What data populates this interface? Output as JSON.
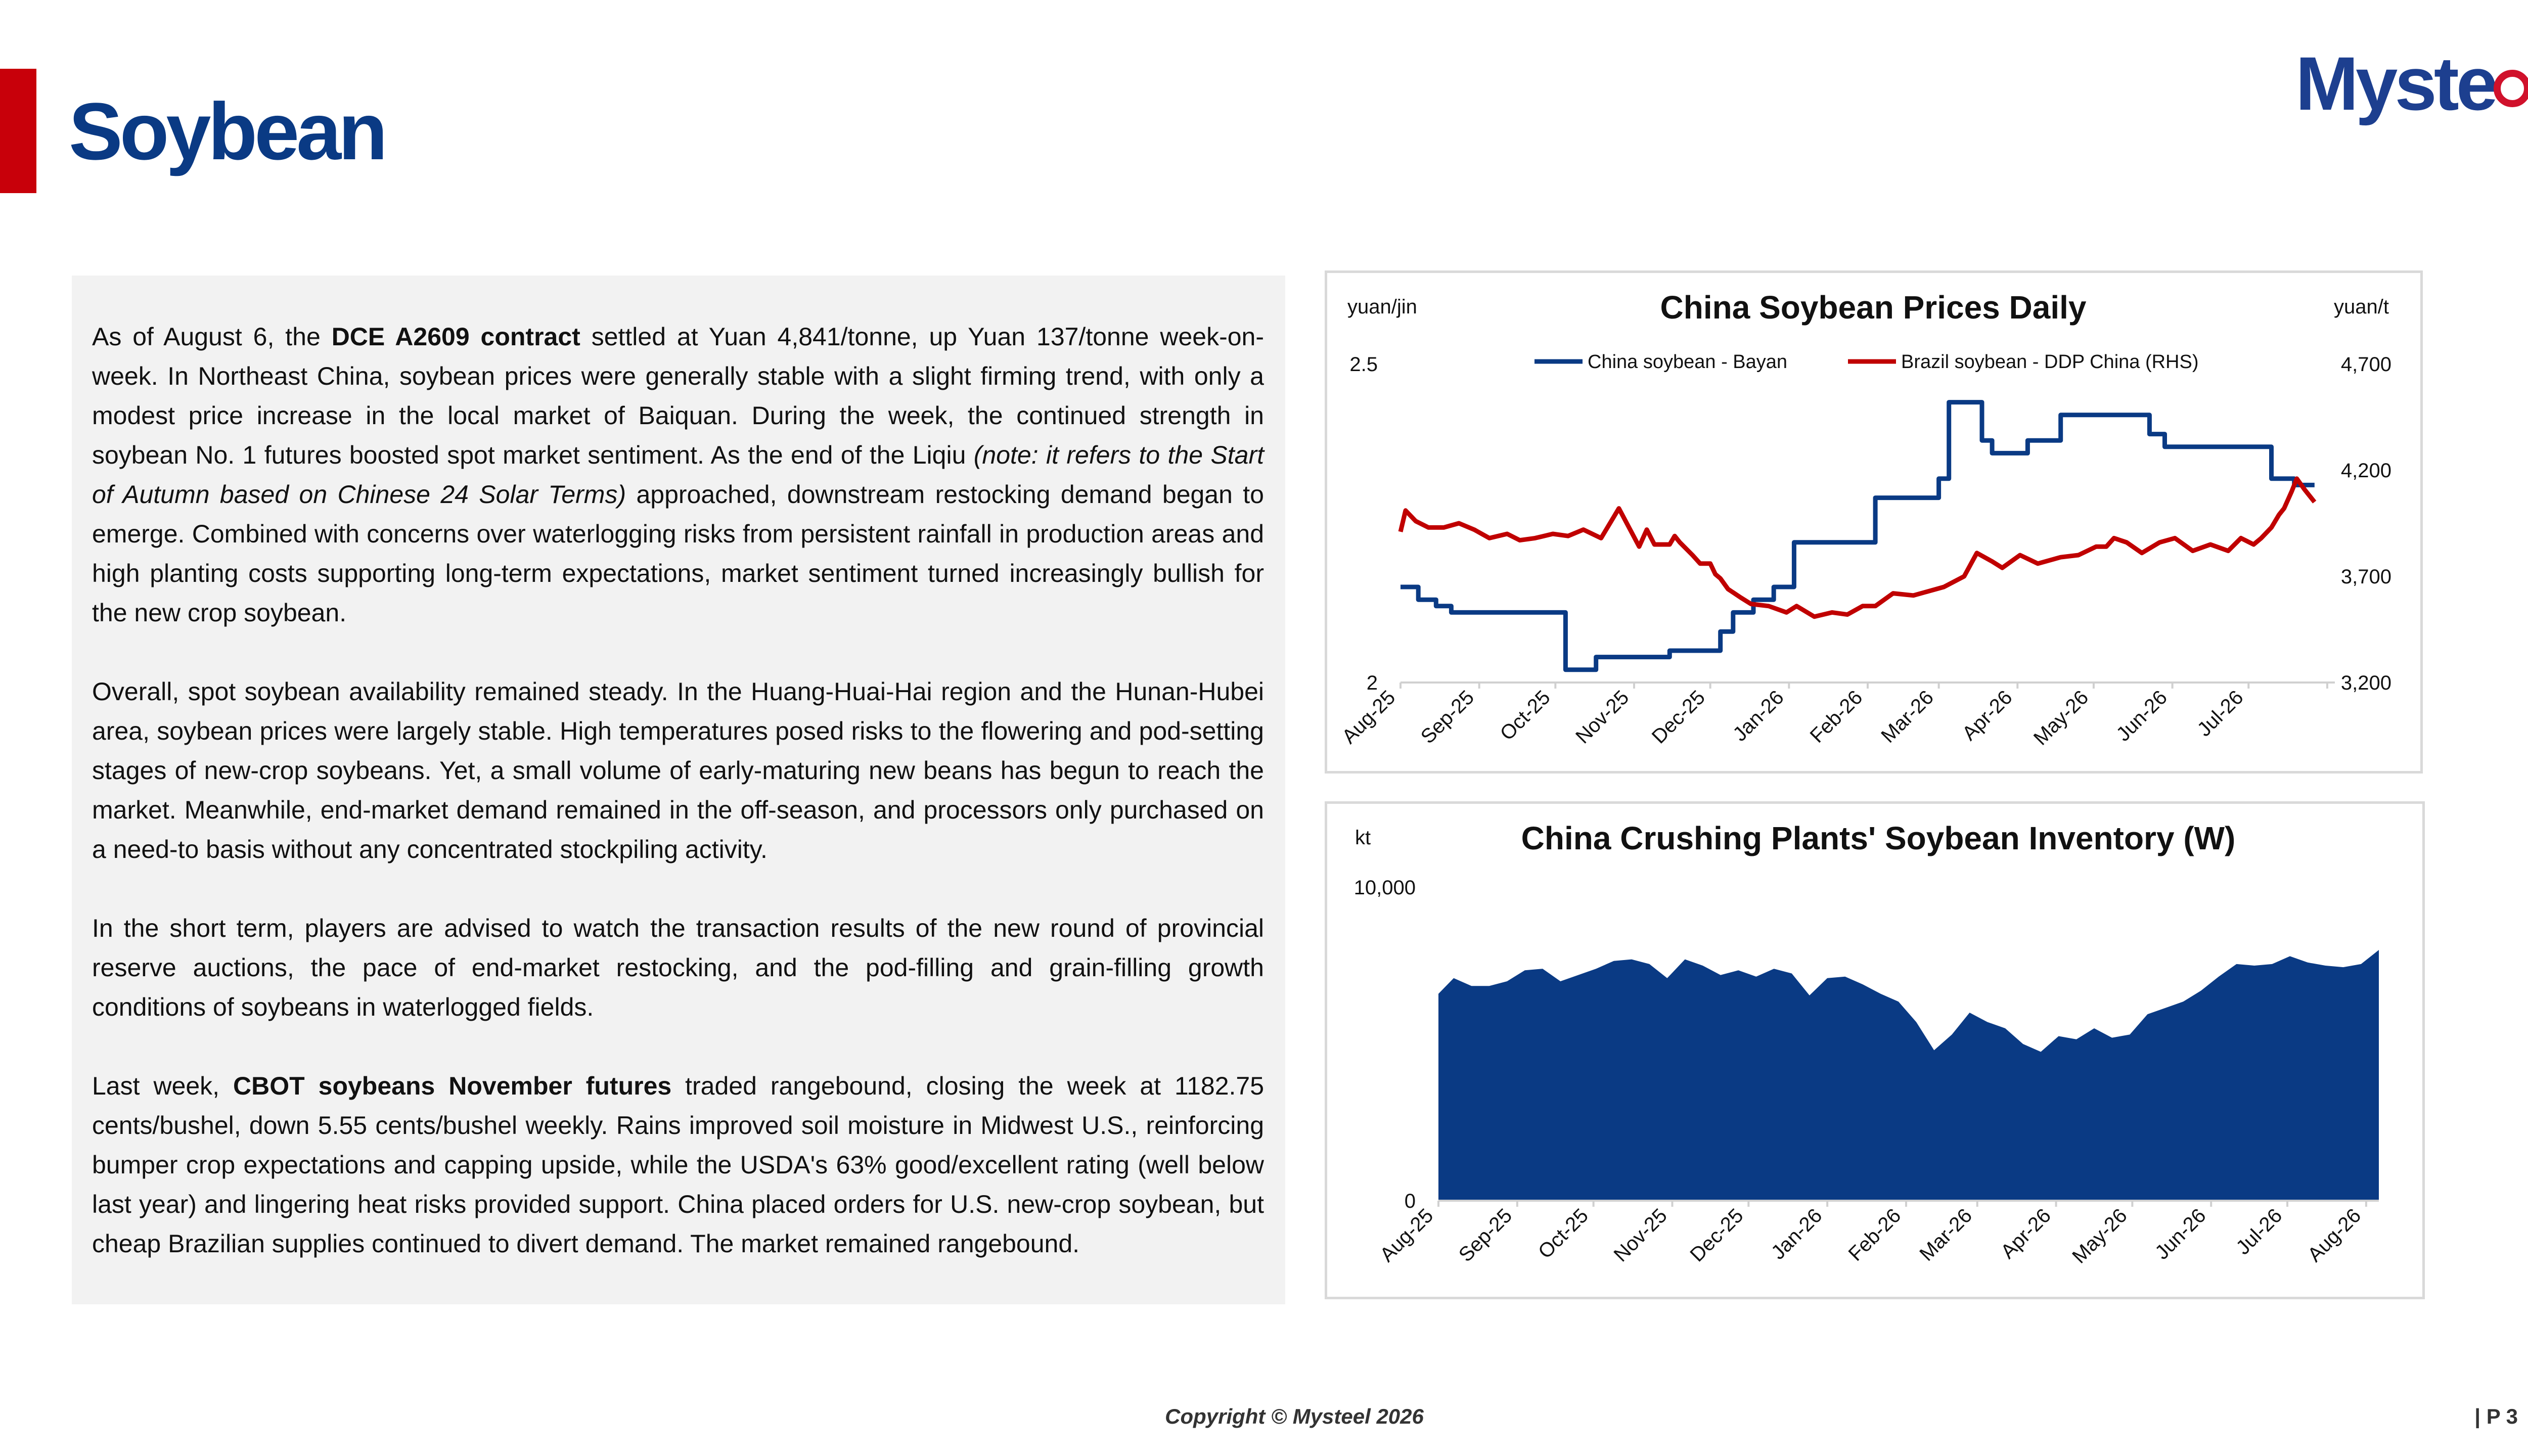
{
  "header": {
    "title": "Soybean",
    "logo_text": "Myste",
    "logo_text_end": "l",
    "accent_color": "#c8000a",
    "title_color": "#0a3a84"
  },
  "article": {
    "p1": {
      "t1": "As of August 6, the ",
      "b1": "DCE A2609 contract",
      "t2": " settled at Yuan 4,841/tonne, up Yuan 137/tonne week-on-week. In Northeast China, soybean prices were generally stable with a slight firming trend, with only a modest price increase in the local market of Baiquan. During the week, the continued strength in soybean No. 1 futures boosted spot market sentiment. As the end of the Liqiu ",
      "i1": "(note: it refers to the Start of Autumn based on Chinese 24 Solar Terms)",
      "t3": " approached, downstream restocking demand began to emerge. Combined with concerns over waterlogging risks from persistent rainfall in production areas and high planting costs supporting long-term expectations, market sentiment turned increasingly bullish for the new crop soybean."
    },
    "p2": "Overall, spot soybean availability remained steady. In the Huang-Huai-Hai region and the Hunan-Hubei area, soybean prices were largely stable. High temperatures posed risks to the flowering and pod-setting stages of new-crop soybeans. Yet, a small volume of early-maturing new beans has begun to reach the market. Meanwhile, end-market demand remained in the off-season, and processors only purchased on a need-to basis without any concentrated stockpiling activity.",
    "p3": "In the short term, players are advised to watch the transaction results of the new round of provincial reserve auctions, the pace of end-market restocking, and the pod-filling and grain-filling growth conditions of soybeans in waterlogged fields.",
    "p4": {
      "t1": "Last week, ",
      "b1": "CBOT soybeans November futures",
      "t2": " traded rangebound, closing the week at 1182.75 cents/bushel, down 5.55 cents/bushel weekly. Rains improved soil moisture in Midwest U.S., reinforcing bumper crop expectations and capping upside, while the USDA's 63% good/excellent rating (well below last year) and lingering heat risks provided support. China placed orders for U.S. new-crop soybean, but cheap Brazilian supplies continued to divert demand. The market remained rangebound."
    }
  },
  "chart_data": [
    {
      "type": "line",
      "title": "China Soybean Prices Daily",
      "ylabel_left": "yuan/jin",
      "ylabel_right": "yuan/t",
      "x_tick_labels": [
        "Aug-25",
        "Sep-25",
        "Oct-25",
        "Nov-25",
        "Dec-25",
        "Jan-26",
        "Feb-26",
        "Mar-26",
        "Apr-26",
        "May-26",
        "Jun-26",
        "Jul-26"
      ],
      "yticks_left": [
        "2.5",
        "2"
      ],
      "yticks_right": [
        "4,700",
        "4,200",
        "3,700",
        "3,200"
      ],
      "ylim_left": [
        2,
        2.5
      ],
      "ylim_right": [
        3200,
        4700
      ],
      "grid": false,
      "legend_position": "top",
      "series": [
        {
          "name": "China soybean - Bayan",
          "axis": "left",
          "color": "#0a3a84",
          "x": [
            "2025-08-01",
            "2025-08-08",
            "2025-08-08",
            "2025-08-15",
            "2025-08-15",
            "2025-08-21",
            "2025-08-21",
            "2025-08-26",
            "2025-08-26",
            "2025-10-05",
            "2025-10-05",
            "2025-10-17",
            "2025-10-17",
            "2025-11-15",
            "2025-11-15",
            "2025-12-05",
            "2025-12-05",
            "2025-12-10",
            "2025-12-10",
            "2025-12-18",
            "2025-12-18",
            "2025-12-26",
            "2025-12-26",
            "2026-01-03",
            "2026-01-03",
            "2026-01-07",
            "2026-01-07",
            "2026-02-04",
            "2026-02-04",
            "2026-02-12",
            "2026-02-12",
            "2026-03-01",
            "2026-03-01",
            "2026-03-05",
            "2026-03-05",
            "2026-03-18",
            "2026-03-18",
            "2026-03-22",
            "2026-03-22",
            "2026-03-26",
            "2026-03-26",
            "2026-04-05",
            "2026-04-05",
            "2026-04-18",
            "2026-04-18",
            "2026-05-13",
            "2026-05-13",
            "2026-05-23",
            "2026-05-23",
            "2026-05-29",
            "2026-05-29",
            "2026-06-09",
            "2026-06-09",
            "2026-07-10",
            "2026-07-10",
            "2026-07-19",
            "2026-07-19",
            "2026-07-27"
          ],
          "values": [
            2.15,
            2.15,
            2.13,
            2.13,
            2.12,
            2.12,
            2.11,
            2.11,
            2.11,
            2.11,
            2.02,
            2.02,
            2.04,
            2.04,
            2.05,
            2.05,
            2.08,
            2.08,
            2.11,
            2.11,
            2.13,
            2.13,
            2.15,
            2.15,
            2.22,
            2.22,
            2.22,
            2.22,
            2.29,
            2.29,
            2.29,
            2.29,
            2.32,
            2.32,
            2.44,
            2.44,
            2.38,
            2.38,
            2.36,
            2.36,
            2.36,
            2.36,
            2.38,
            2.38,
            2.42,
            2.42,
            2.42,
            2.42,
            2.39,
            2.39,
            2.37,
            2.37,
            2.37,
            2.37,
            2.32,
            2.32,
            2.31,
            2.31
          ]
        },
        {
          "name": "Brazil soybean - DDP China (RHS)",
          "axis": "right",
          "color": "#c00000",
          "x": [
            "2025-08-01",
            "2025-08-03",
            "2025-08-07",
            "2025-08-12",
            "2025-08-18",
            "2025-08-24",
            "2025-08-30",
            "2025-09-05",
            "2025-09-12",
            "2025-09-17",
            "2025-09-23",
            "2025-09-30",
            "2025-10-06",
            "2025-10-12",
            "2025-10-19",
            "2025-10-22",
            "2025-10-26",
            "2025-11-03",
            "2025-11-06",
            "2025-11-09",
            "2025-11-15",
            "2025-11-17",
            "2025-11-19",
            "2025-11-24",
            "2025-11-27",
            "2025-12-01",
            "2025-12-03",
            "2025-12-05",
            "2025-12-08",
            "2025-12-13",
            "2025-12-17",
            "2025-12-24",
            "2025-12-31",
            "2026-01-04",
            "2026-01-11",
            "2026-01-18",
            "2026-01-24",
            "2026-01-30",
            "2026-02-04",
            "2026-02-11",
            "2026-02-19",
            "2026-02-25",
            "2026-03-03",
            "2026-03-11",
            "2026-03-16",
            "2026-03-22",
            "2026-03-26",
            "2026-04-02",
            "2026-04-09",
            "2026-04-18",
            "2026-04-25",
            "2026-05-02",
            "2026-05-06",
            "2026-05-09",
            "2026-05-14",
            "2026-05-20",
            "2026-05-27",
            "2026-06-02",
            "2026-06-09",
            "2026-06-16",
            "2026-06-23",
            "2026-06-28",
            "2026-07-03",
            "2026-07-06",
            "2026-07-10",
            "2026-07-13",
            "2026-07-15",
            "2026-07-18",
            "2026-07-20",
            "2026-07-23",
            "2026-07-27"
          ],
          "values": [
            3910,
            4010,
            3960,
            3930,
            3930,
            3950,
            3920,
            3880,
            3900,
            3870,
            3880,
            3900,
            3890,
            3920,
            3880,
            3940,
            4020,
            3840,
            3920,
            3850,
            3850,
            3890,
            3860,
            3800,
            3760,
            3760,
            3710,
            3690,
            3640,
            3600,
            3570,
            3560,
            3530,
            3560,
            3510,
            3530,
            3520,
            3560,
            3560,
            3620,
            3610,
            3630,
            3650,
            3700,
            3810,
            3770,
            3740,
            3800,
            3760,
            3790,
            3800,
            3840,
            3840,
            3880,
            3860,
            3810,
            3860,
            3880,
            3820,
            3850,
            3820,
            3880,
            3850,
            3880,
            3930,
            3990,
            4020,
            4100,
            4160,
            4110,
            4050
          ]
        }
      ]
    },
    {
      "type": "area",
      "title": "China Crushing Plants' Soybean Inventory (W)",
      "ylabel": "kt",
      "yticks": [
        "10,000",
        "0"
      ],
      "ylim": [
        0,
        10000
      ],
      "x_tick_labels": [
        "Aug-25",
        "Sep-25",
        "Oct-25",
        "Nov-25",
        "Dec-25",
        "Jan-26",
        "Feb-26",
        "Mar-26",
        "Apr-26",
        "May-26",
        "Jun-26",
        "Jul-26",
        "Aug-26"
      ],
      "grid": false,
      "series": [
        {
          "color": "#0a3a84",
          "x": [
            "2025-08-01",
            "2025-08-07",
            "2025-08-14",
            "2025-08-21",
            "2025-08-28",
            "2025-09-04",
            "2025-09-11",
            "2025-09-18",
            "2025-09-25",
            "2025-10-02",
            "2025-10-09",
            "2025-10-16",
            "2025-10-23",
            "2025-10-30",
            "2025-11-06",
            "2025-11-13",
            "2025-11-20",
            "2025-11-27",
            "2025-12-04",
            "2025-12-11",
            "2025-12-18",
            "2025-12-25",
            "2026-01-01",
            "2026-01-08",
            "2026-01-15",
            "2026-01-22",
            "2026-01-29",
            "2026-02-05",
            "2026-02-12",
            "2026-02-19",
            "2026-02-26",
            "2026-03-05",
            "2026-03-12",
            "2026-03-19",
            "2026-03-26",
            "2026-04-02",
            "2026-04-09",
            "2026-04-16",
            "2026-04-23",
            "2026-04-30",
            "2026-05-07",
            "2026-05-14",
            "2026-05-21",
            "2026-05-28",
            "2026-06-04",
            "2026-06-11",
            "2026-06-18",
            "2026-06-25",
            "2026-07-02",
            "2026-07-09",
            "2026-07-16",
            "2026-07-23",
            "2026-07-30",
            "2026-08-06"
          ],
          "values": [
            6600,
            7100,
            6850,
            6850,
            7000,
            7350,
            7400,
            7000,
            7200,
            7400,
            7650,
            7700,
            7550,
            7100,
            7700,
            7500,
            7200,
            7350,
            7150,
            7400,
            7250,
            6550,
            7100,
            7150,
            6900,
            6600,
            6350,
            5700,
            4800,
            5300,
            6000,
            5700,
            5500,
            5000,
            4750,
            5250,
            5150,
            5500,
            5200,
            5300,
            5950,
            6150,
            6350,
            6700,
            7150,
            7550,
            7500,
            7550,
            7800,
            7600,
            7500,
            7450,
            7550,
            8000
          ]
        }
      ]
    }
  ],
  "footer": {
    "copyright": "Copyright © Mysteel 2026",
    "page": "| P 3"
  }
}
